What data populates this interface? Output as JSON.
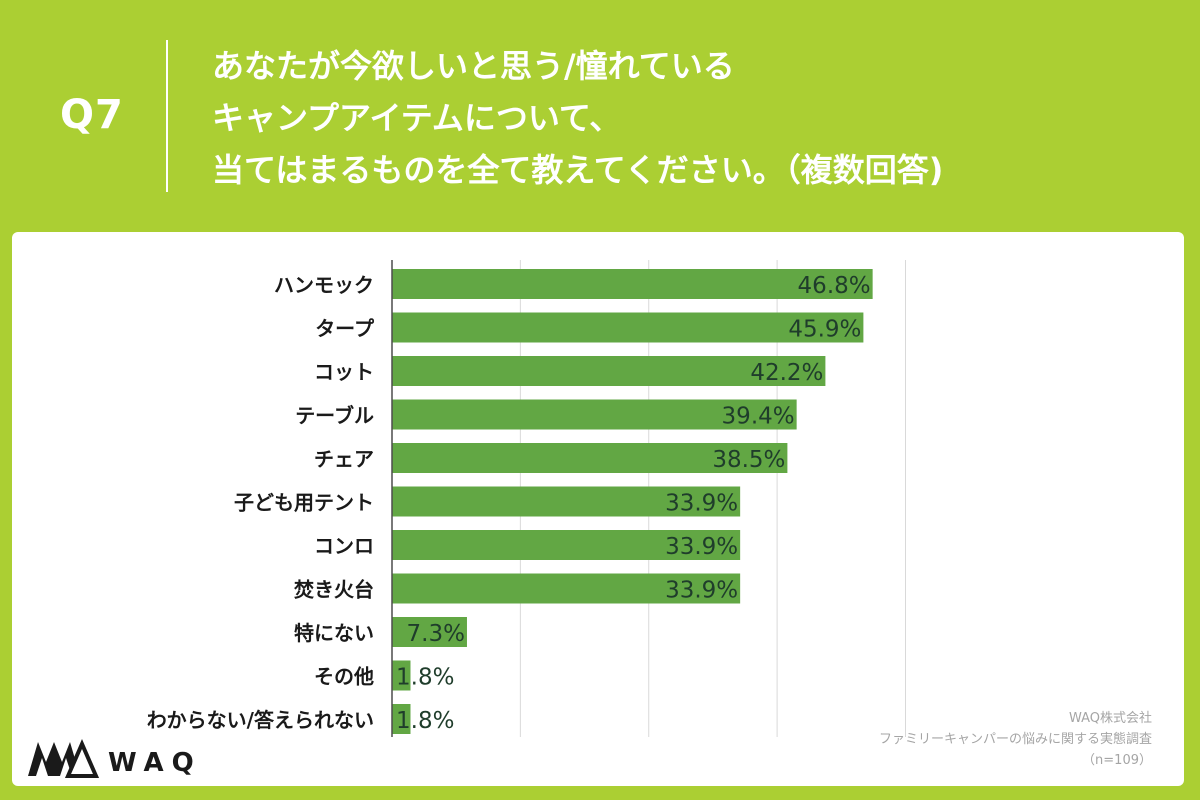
{
  "question": {
    "label": "Q7",
    "lines": [
      "あなたが今欲しいと思う/憧れている",
      "キャンプアイテムについて、",
      "当てはまるものを全て教えてください。（複数回答)"
    ]
  },
  "chart_data": {
    "type": "bar",
    "orientation": "horizontal",
    "categories": [
      "ハンモック",
      "タープ",
      "コット",
      "テーブル",
      "チェア",
      "子ども用テント",
      "コンロ",
      "焚き火台",
      "特にない",
      "その他",
      "わからない/答えられない"
    ],
    "values": [
      46.8,
      45.9,
      42.2,
      39.4,
      38.5,
      33.9,
      33.9,
      33.9,
      7.3,
      1.8,
      1.8
    ],
    "value_labels": [
      "46.8%",
      "45.9%",
      "42.2%",
      "39.4%",
      "38.5%",
      "33.9%",
      "33.9%",
      "33.9%",
      "7.3%",
      "1.8%",
      "1.8%"
    ],
    "xlim": [
      0,
      60
    ],
    "grid_step": 12.5,
    "grid": true,
    "bar_color": "#62a744",
    "label_color": "#1f3d2b"
  },
  "logo": {
    "text": "WAQ"
  },
  "source": {
    "company": "WAQ株式会社",
    "survey": "ファミリーキャンパーの悩みに関する実態調査",
    "sample": "（n=109）"
  },
  "colors": {
    "background": "#abcf33",
    "panel": "#ffffff",
    "grid": "#d9d9d9"
  }
}
